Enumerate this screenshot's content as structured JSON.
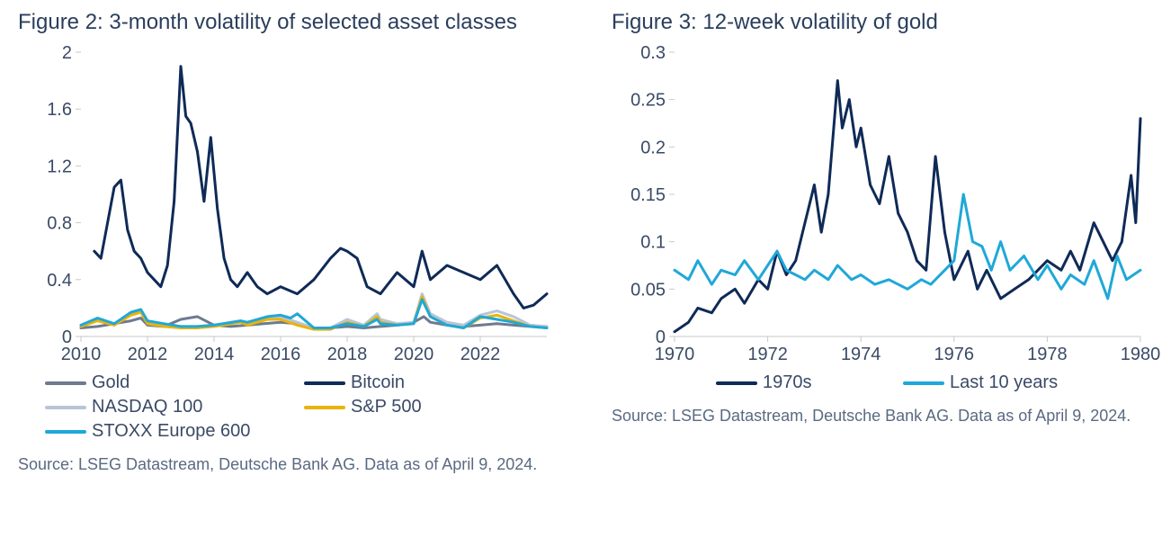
{
  "figure2": {
    "type": "line",
    "title": "Figure 2: 3-month volatility of selected asset classes",
    "source": "Source: LSEG Datastream, Deutsche Bank AG. Data as of April 9, 2024.",
    "xlim": [
      2010,
      2024
    ],
    "ylim": [
      0,
      2
    ],
    "xticks": [
      2010,
      2012,
      2014,
      2016,
      2018,
      2020,
      2022
    ],
    "yticks": [
      0,
      0.4,
      0.8,
      1.2,
      1.6,
      2
    ],
    "background_color": "#ffffff",
    "axis_color": "#c8c8c8",
    "text_color": "#3a4a66",
    "title_color": "#2a3e5c",
    "title_fontsize": 24,
    "label_fontsize": 20,
    "line_width": 3,
    "series": [
      {
        "name": "Gold",
        "color": "#6e7a8f",
        "data": [
          [
            2010.0,
            0.06
          ],
          [
            2010.5,
            0.07
          ],
          [
            2011.0,
            0.09
          ],
          [
            2011.5,
            0.11
          ],
          [
            2011.8,
            0.13
          ],
          [
            2012.0,
            0.08
          ],
          [
            2012.5,
            0.07
          ],
          [
            2013.0,
            0.12
          ],
          [
            2013.5,
            0.14
          ],
          [
            2014.0,
            0.08
          ],
          [
            2014.5,
            0.07
          ],
          [
            2015.0,
            0.08
          ],
          [
            2015.5,
            0.09
          ],
          [
            2016.0,
            0.1
          ],
          [
            2016.5,
            0.09
          ],
          [
            2017.0,
            0.06
          ],
          [
            2017.5,
            0.06
          ],
          [
            2018.0,
            0.07
          ],
          [
            2018.5,
            0.06
          ],
          [
            2019.0,
            0.07
          ],
          [
            2019.5,
            0.08
          ],
          [
            2020.0,
            0.1
          ],
          [
            2020.3,
            0.14
          ],
          [
            2020.5,
            0.1
          ],
          [
            2021.0,
            0.08
          ],
          [
            2021.5,
            0.07
          ],
          [
            2022.0,
            0.08
          ],
          [
            2022.5,
            0.09
          ],
          [
            2023.0,
            0.08
          ],
          [
            2023.5,
            0.07
          ],
          [
            2024.0,
            0.07
          ]
        ]
      },
      {
        "name": "Bitcoin",
        "color": "#0f2a57",
        "data": [
          [
            2010.4,
            0.6
          ],
          [
            2010.6,
            0.55
          ],
          [
            2010.8,
            0.8
          ],
          [
            2011.0,
            1.05
          ],
          [
            2011.2,
            1.1
          ],
          [
            2011.4,
            0.75
          ],
          [
            2011.6,
            0.6
          ],
          [
            2011.8,
            0.55
          ],
          [
            2012.0,
            0.45
          ],
          [
            2012.2,
            0.4
          ],
          [
            2012.4,
            0.35
          ],
          [
            2012.6,
            0.5
          ],
          [
            2012.8,
            0.95
          ],
          [
            2013.0,
            1.9
          ],
          [
            2013.15,
            1.55
          ],
          [
            2013.3,
            1.5
          ],
          [
            2013.5,
            1.3
          ],
          [
            2013.7,
            0.95
          ],
          [
            2013.9,
            1.4
          ],
          [
            2014.1,
            0.9
          ],
          [
            2014.3,
            0.55
          ],
          [
            2014.5,
            0.4
          ],
          [
            2014.7,
            0.35
          ],
          [
            2015.0,
            0.45
          ],
          [
            2015.3,
            0.35
          ],
          [
            2015.6,
            0.3
          ],
          [
            2016.0,
            0.35
          ],
          [
            2016.5,
            0.3
          ],
          [
            2017.0,
            0.4
          ],
          [
            2017.5,
            0.55
          ],
          [
            2017.8,
            0.62
          ],
          [
            2018.0,
            0.6
          ],
          [
            2018.3,
            0.55
          ],
          [
            2018.6,
            0.35
          ],
          [
            2019.0,
            0.3
          ],
          [
            2019.5,
            0.45
          ],
          [
            2020.0,
            0.35
          ],
          [
            2020.25,
            0.6
          ],
          [
            2020.5,
            0.4
          ],
          [
            2021.0,
            0.5
          ],
          [
            2021.5,
            0.45
          ],
          [
            2022.0,
            0.4
          ],
          [
            2022.5,
            0.5
          ],
          [
            2023.0,
            0.3
          ],
          [
            2023.3,
            0.2
          ],
          [
            2023.6,
            0.22
          ],
          [
            2024.0,
            0.3
          ]
        ]
      },
      {
        "name": "NASDAQ 100",
        "color": "#b8c5d6",
        "data": [
          [
            2010.0,
            0.08
          ],
          [
            2010.5,
            0.12
          ],
          [
            2011.0,
            0.09
          ],
          [
            2011.5,
            0.16
          ],
          [
            2011.8,
            0.18
          ],
          [
            2012.0,
            0.1
          ],
          [
            2012.5,
            0.08
          ],
          [
            2013.0,
            0.07
          ],
          [
            2013.5,
            0.07
          ],
          [
            2014.0,
            0.08
          ],
          [
            2014.8,
            0.11
          ],
          [
            2015.0,
            0.09
          ],
          [
            2015.6,
            0.13
          ],
          [
            2016.0,
            0.14
          ],
          [
            2016.5,
            0.1
          ],
          [
            2017.0,
            0.06
          ],
          [
            2017.5,
            0.06
          ],
          [
            2018.0,
            0.12
          ],
          [
            2018.5,
            0.08
          ],
          [
            2018.9,
            0.16
          ],
          [
            2019.0,
            0.12
          ],
          [
            2019.5,
            0.09
          ],
          [
            2020.0,
            0.1
          ],
          [
            2020.25,
            0.3
          ],
          [
            2020.5,
            0.16
          ],
          [
            2021.0,
            0.1
          ],
          [
            2021.5,
            0.08
          ],
          [
            2022.0,
            0.15
          ],
          [
            2022.5,
            0.18
          ],
          [
            2023.0,
            0.14
          ],
          [
            2023.5,
            0.08
          ],
          [
            2024.0,
            0.07
          ]
        ]
      },
      {
        "name": "S&P 500",
        "color": "#eab308",
        "data": [
          [
            2010.0,
            0.07
          ],
          [
            2010.5,
            0.11
          ],
          [
            2011.0,
            0.08
          ],
          [
            2011.5,
            0.15
          ],
          [
            2011.8,
            0.17
          ],
          [
            2012.0,
            0.09
          ],
          [
            2012.5,
            0.07
          ],
          [
            2013.0,
            0.06
          ],
          [
            2013.5,
            0.06
          ],
          [
            2014.0,
            0.07
          ],
          [
            2014.8,
            0.1
          ],
          [
            2015.0,
            0.08
          ],
          [
            2015.6,
            0.12
          ],
          [
            2016.0,
            0.12
          ],
          [
            2016.5,
            0.08
          ],
          [
            2017.0,
            0.05
          ],
          [
            2017.5,
            0.05
          ],
          [
            2018.0,
            0.1
          ],
          [
            2018.5,
            0.07
          ],
          [
            2018.9,
            0.14
          ],
          [
            2019.0,
            0.1
          ],
          [
            2019.5,
            0.08
          ],
          [
            2020.0,
            0.09
          ],
          [
            2020.25,
            0.28
          ],
          [
            2020.5,
            0.14
          ],
          [
            2021.0,
            0.08
          ],
          [
            2021.5,
            0.06
          ],
          [
            2022.0,
            0.13
          ],
          [
            2022.5,
            0.15
          ],
          [
            2023.0,
            0.11
          ],
          [
            2023.5,
            0.07
          ],
          [
            2024.0,
            0.06
          ]
        ]
      },
      {
        "name": "STOXX Europe 600",
        "color": "#1fa8d8",
        "data": [
          [
            2010.0,
            0.08
          ],
          [
            2010.5,
            0.13
          ],
          [
            2011.0,
            0.09
          ],
          [
            2011.5,
            0.17
          ],
          [
            2011.8,
            0.19
          ],
          [
            2012.0,
            0.11
          ],
          [
            2012.5,
            0.09
          ],
          [
            2013.0,
            0.07
          ],
          [
            2013.5,
            0.07
          ],
          [
            2014.0,
            0.08
          ],
          [
            2014.8,
            0.11
          ],
          [
            2015.0,
            0.1
          ],
          [
            2015.6,
            0.14
          ],
          [
            2016.0,
            0.15
          ],
          [
            2016.3,
            0.13
          ],
          [
            2016.5,
            0.16
          ],
          [
            2017.0,
            0.06
          ],
          [
            2017.5,
            0.06
          ],
          [
            2018.0,
            0.09
          ],
          [
            2018.5,
            0.07
          ],
          [
            2018.9,
            0.12
          ],
          [
            2019.0,
            0.09
          ],
          [
            2019.5,
            0.08
          ],
          [
            2020.0,
            0.09
          ],
          [
            2020.25,
            0.26
          ],
          [
            2020.5,
            0.14
          ],
          [
            2021.0,
            0.08
          ],
          [
            2021.5,
            0.06
          ],
          [
            2022.0,
            0.14
          ],
          [
            2022.5,
            0.12
          ],
          [
            2023.0,
            0.1
          ],
          [
            2023.5,
            0.07
          ],
          [
            2024.0,
            0.06
          ]
        ]
      }
    ]
  },
  "figure3": {
    "type": "line",
    "title": "Figure 3: 12-week volatility of gold",
    "source": "Source: LSEG Datastream, Deutsche Bank AG. Data as of April 9, 2024.",
    "xlim": [
      1970,
      1980
    ],
    "ylim": [
      0,
      0.3
    ],
    "xticks": [
      1970,
      1972,
      1974,
      1976,
      1978,
      1980
    ],
    "yticks": [
      0,
      0.05,
      0.1,
      0.15,
      0.2,
      0.25,
      0.3
    ],
    "background_color": "#ffffff",
    "axis_color": "#c8c8c8",
    "text_color": "#3a4a66",
    "title_color": "#2a3e5c",
    "title_fontsize": 24,
    "label_fontsize": 20,
    "legend_swatch_width": 46,
    "line_width": 3,
    "series": [
      {
        "name": "1970s",
        "color": "#0f2a57",
        "data": [
          [
            1970.0,
            0.005
          ],
          [
            1970.3,
            0.015
          ],
          [
            1970.5,
            0.03
          ],
          [
            1970.8,
            0.025
          ],
          [
            1971.0,
            0.04
          ],
          [
            1971.3,
            0.05
          ],
          [
            1971.5,
            0.035
          ],
          [
            1971.8,
            0.06
          ],
          [
            1972.0,
            0.05
          ],
          [
            1972.2,
            0.09
          ],
          [
            1972.4,
            0.065
          ],
          [
            1972.6,
            0.08
          ],
          [
            1972.8,
            0.12
          ],
          [
            1973.0,
            0.16
          ],
          [
            1973.15,
            0.11
          ],
          [
            1973.3,
            0.15
          ],
          [
            1973.5,
            0.27
          ],
          [
            1973.6,
            0.22
          ],
          [
            1973.75,
            0.25
          ],
          [
            1973.9,
            0.2
          ],
          [
            1974.0,
            0.22
          ],
          [
            1974.2,
            0.16
          ],
          [
            1974.4,
            0.14
          ],
          [
            1974.6,
            0.19
          ],
          [
            1974.8,
            0.13
          ],
          [
            1975.0,
            0.11
          ],
          [
            1975.2,
            0.08
          ],
          [
            1975.4,
            0.07
          ],
          [
            1975.6,
            0.19
          ],
          [
            1975.8,
            0.11
          ],
          [
            1976.0,
            0.06
          ],
          [
            1976.3,
            0.09
          ],
          [
            1976.5,
            0.05
          ],
          [
            1976.7,
            0.07
          ],
          [
            1977.0,
            0.04
          ],
          [
            1977.3,
            0.05
          ],
          [
            1977.6,
            0.06
          ],
          [
            1978.0,
            0.08
          ],
          [
            1978.3,
            0.07
          ],
          [
            1978.5,
            0.09
          ],
          [
            1978.7,
            0.07
          ],
          [
            1979.0,
            0.12
          ],
          [
            1979.2,
            0.1
          ],
          [
            1979.4,
            0.08
          ],
          [
            1979.6,
            0.1
          ],
          [
            1979.8,
            0.17
          ],
          [
            1979.9,
            0.12
          ],
          [
            1980.0,
            0.23
          ]
        ]
      },
      {
        "name": "Last 10 years",
        "color": "#1fa8d8",
        "data": [
          [
            1970.0,
            0.07
          ],
          [
            1970.3,
            0.06
          ],
          [
            1970.5,
            0.08
          ],
          [
            1970.8,
            0.055
          ],
          [
            1971.0,
            0.07
          ],
          [
            1971.3,
            0.065
          ],
          [
            1971.5,
            0.08
          ],
          [
            1971.8,
            0.06
          ],
          [
            1972.0,
            0.075
          ],
          [
            1972.2,
            0.09
          ],
          [
            1972.4,
            0.07
          ],
          [
            1972.6,
            0.065
          ],
          [
            1972.8,
            0.06
          ],
          [
            1973.0,
            0.07
          ],
          [
            1973.3,
            0.06
          ],
          [
            1973.5,
            0.075
          ],
          [
            1973.8,
            0.06
          ],
          [
            1974.0,
            0.065
          ],
          [
            1974.3,
            0.055
          ],
          [
            1974.6,
            0.06
          ],
          [
            1975.0,
            0.05
          ],
          [
            1975.3,
            0.06
          ],
          [
            1975.5,
            0.055
          ],
          [
            1975.8,
            0.07
          ],
          [
            1976.0,
            0.08
          ],
          [
            1976.2,
            0.15
          ],
          [
            1976.4,
            0.1
          ],
          [
            1976.6,
            0.095
          ],
          [
            1976.8,
            0.07
          ],
          [
            1977.0,
            0.1
          ],
          [
            1977.2,
            0.07
          ],
          [
            1977.5,
            0.085
          ],
          [
            1977.8,
            0.06
          ],
          [
            1978.0,
            0.075
          ],
          [
            1978.3,
            0.05
          ],
          [
            1978.5,
            0.065
          ],
          [
            1978.8,
            0.055
          ],
          [
            1979.0,
            0.08
          ],
          [
            1979.3,
            0.04
          ],
          [
            1979.5,
            0.085
          ],
          [
            1979.7,
            0.06
          ],
          [
            1980.0,
            0.07
          ]
        ]
      }
    ]
  }
}
